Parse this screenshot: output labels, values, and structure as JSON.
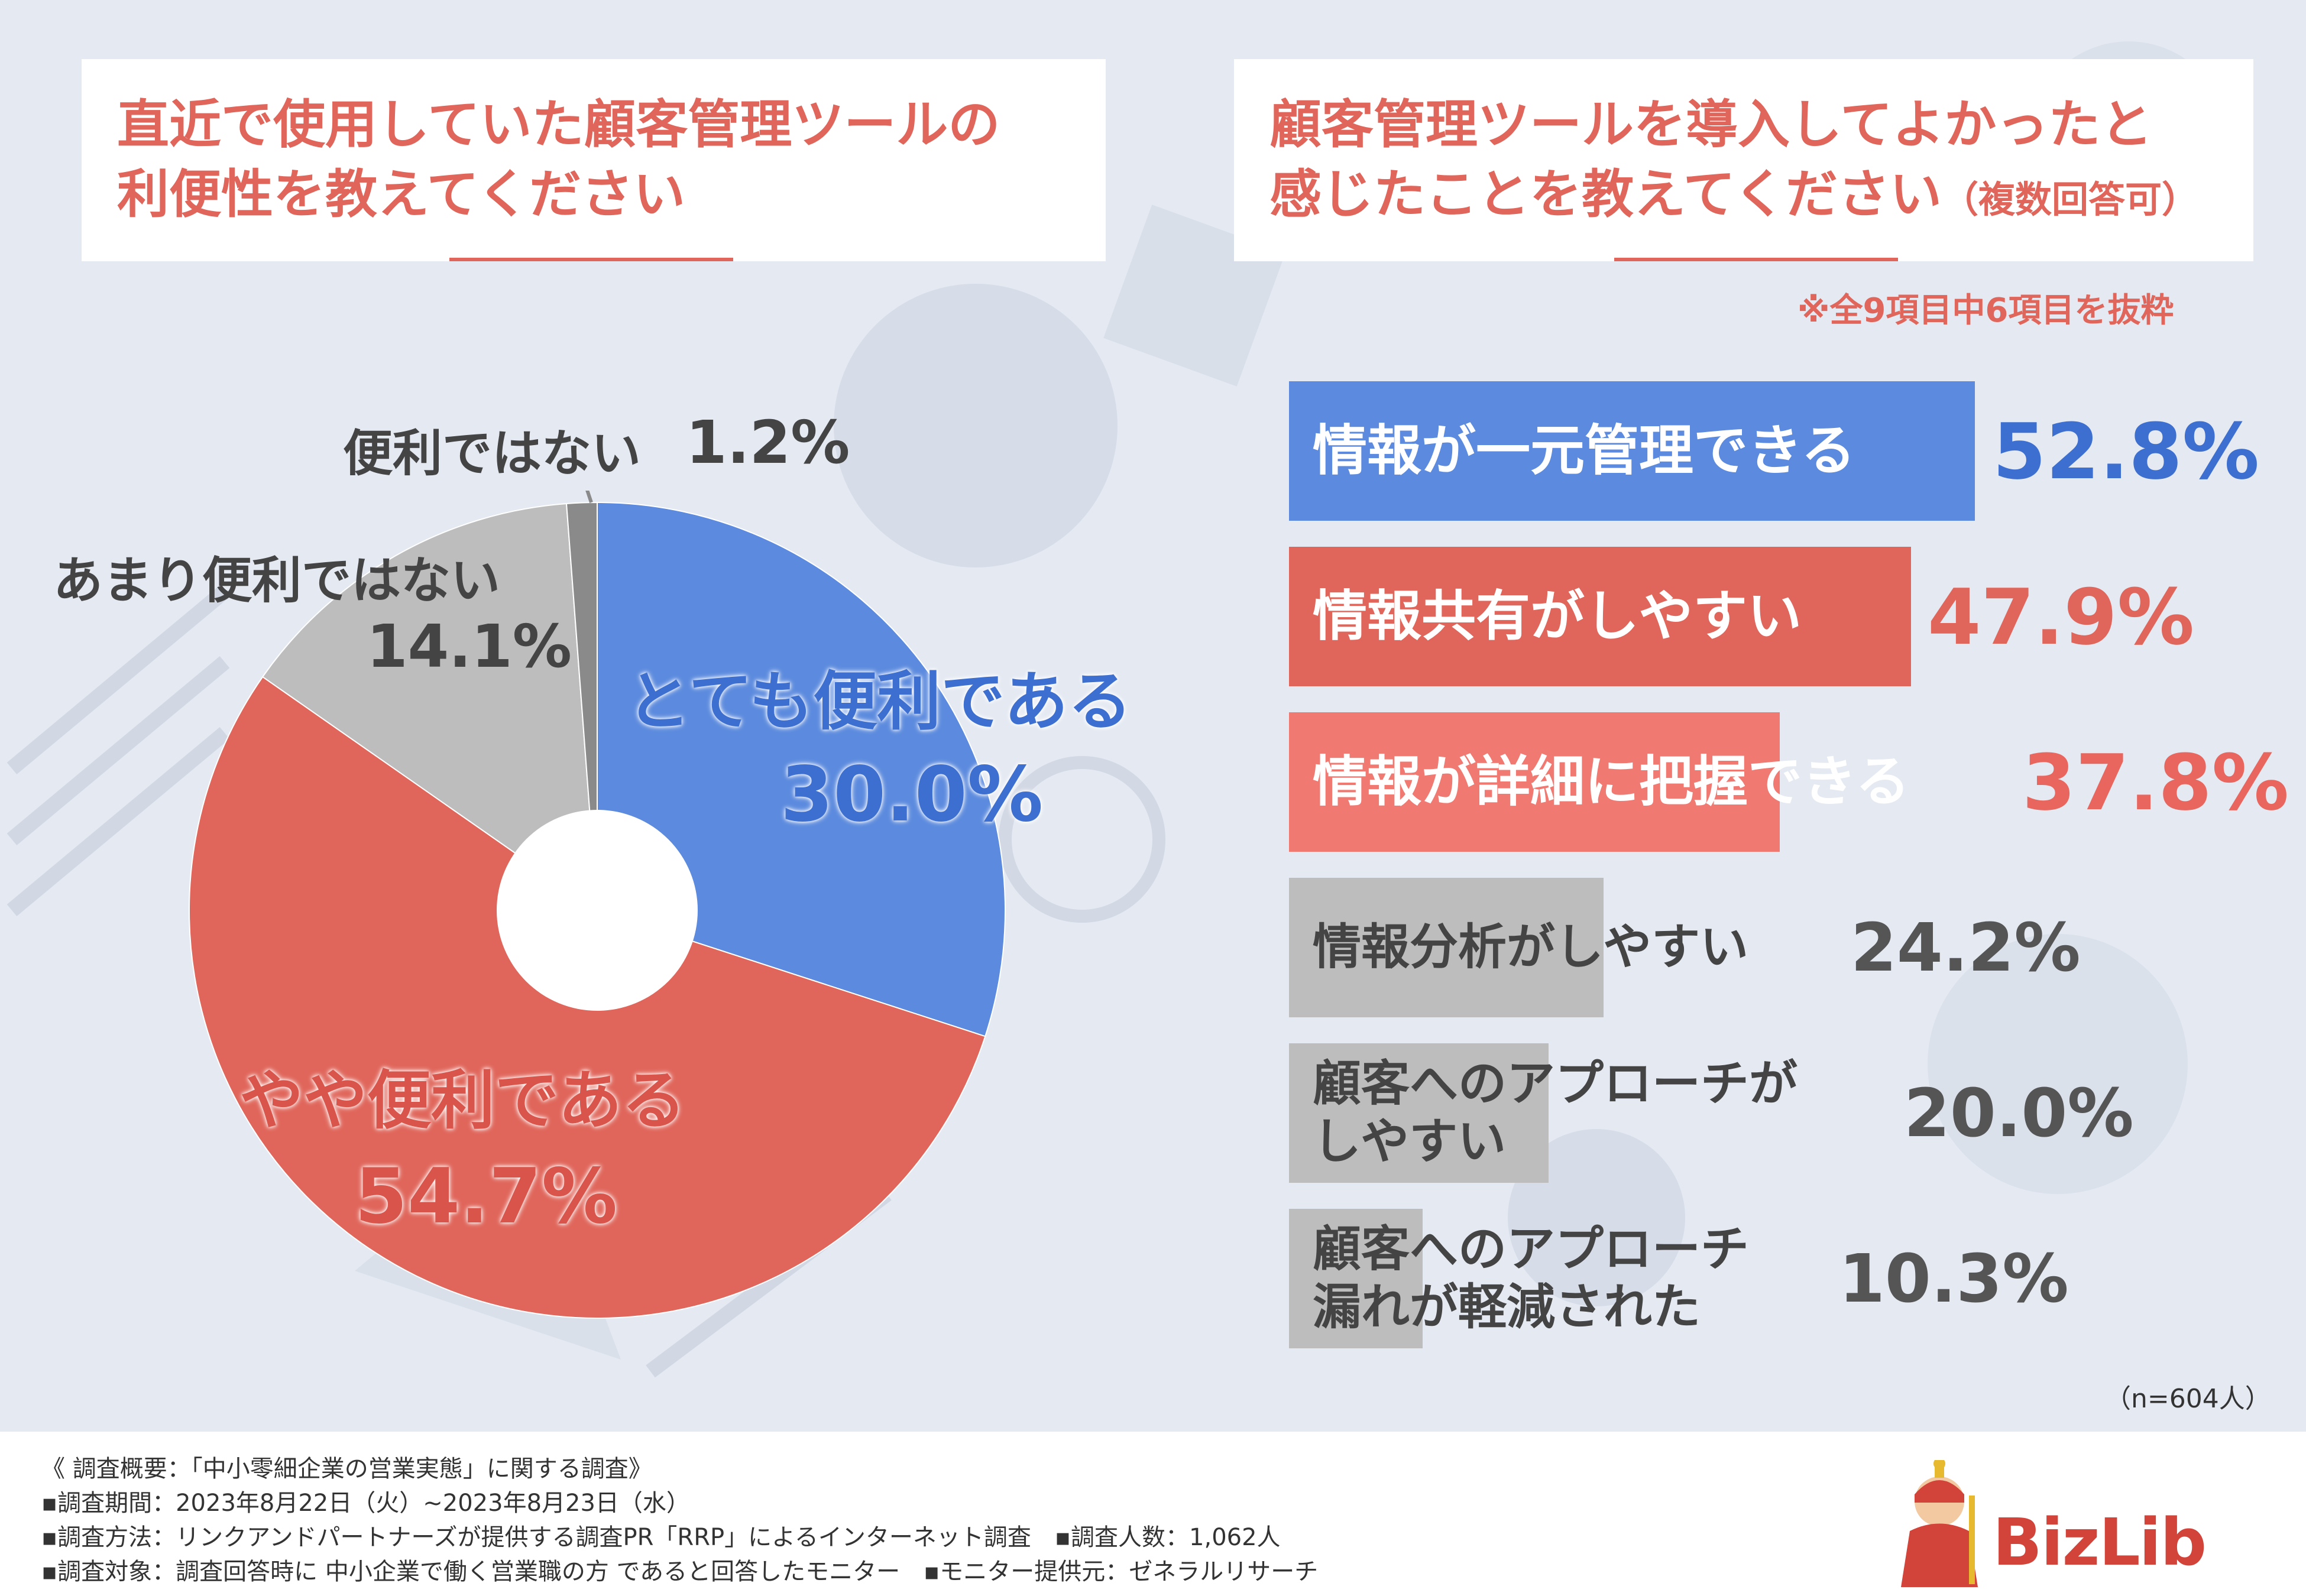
{
  "left": {
    "title_line1": "直近で使用していた顧客管理ツールの",
    "title_line2": "利便性を教えてください"
  },
  "right": {
    "title_line1": "顧客管理ツールを導入してよかったと",
    "title_line2": "感じたことを教えてください",
    "title_note": "（複数回答可）",
    "subnote": "※全9項目中6項目を抜粋",
    "n_note": "（n=604人）"
  },
  "chart_data": [
    {
      "type": "pie",
      "title": "直近で使用していた顧客管理ツールの利便性を教えてください",
      "slices": [
        {
          "label": "とても便利である",
          "value": 30.0,
          "display": "30.0%",
          "color": "#5b8ade"
        },
        {
          "label": "やや便利である",
          "value": 54.7,
          "display": "54.7%",
          "color": "#e0655a"
        },
        {
          "label": "あまり便利ではない",
          "value": 14.1,
          "display": "14.1%",
          "color": "#bdbdbd"
        },
        {
          "label": "便利ではない",
          "value": 1.2,
          "display": "1.2%",
          "color": "#8a8a8a"
        }
      ]
    },
    {
      "type": "bar",
      "title": "顧客管理ツールを導入してよかったと感じたことを教えてください（複数回答可）",
      "categories": [
        "情報が一元管理できる",
        "情報共有がしやすい",
        "情報が詳細に把握できる",
        "情報分析がしやすい",
        "顧客へのアプローチがしやすい",
        "顧客へのアプローチ漏れが軽減された"
      ],
      "category_lines": [
        [
          "情報が一元管理できる"
        ],
        [
          "情報共有がしやすい"
        ],
        [
          "情報が詳細に把握できる"
        ],
        [
          "情報分析がしやすい"
        ],
        [
          "顧客へのアプローチが",
          "しやすい"
        ],
        [
          "顧客へのアプローチ",
          "漏れが軽減された"
        ]
      ],
      "values": [
        52.8,
        47.9,
        37.8,
        24.2,
        20.0,
        10.3
      ],
      "displays": [
        "52.8%",
        "47.9%",
        "37.8%",
        "24.2%",
        "20.0%",
        "10.3%"
      ],
      "colors": [
        "#5b8ade",
        "#e0655a",
        "#f07a72",
        "#bdbdbd",
        "#bdbdbd",
        "#bdbdbd"
      ],
      "label_colors": [
        "#ffffff",
        "#ffffff",
        "#ffffff",
        "#444444",
        "#444444",
        "#444444"
      ],
      "value_colors": [
        "#3d6fd0",
        "#e0655a",
        "#e8665e",
        "#555555",
        "#555555",
        "#555555"
      ]
    }
  ],
  "footer": {
    "line1": "《 調査概要：「中小零細企業の営業実態」に関する調査》",
    "line2": "▪調査期間：2023年8月22日（火）~2023年8月23日（水）",
    "line3": "▪調査方法：リンクアンドパートナーズが提供する調査PR「RRP」によるインターネット調査　▪調査人数：1,062人",
    "line4": "▪調査対象：調査回答時に 中小企業で働く営業職の方 であると回答したモニター　▪モニター提供元：ゼネラルリサーチ"
  },
  "logo": {
    "text": "BizLib"
  }
}
